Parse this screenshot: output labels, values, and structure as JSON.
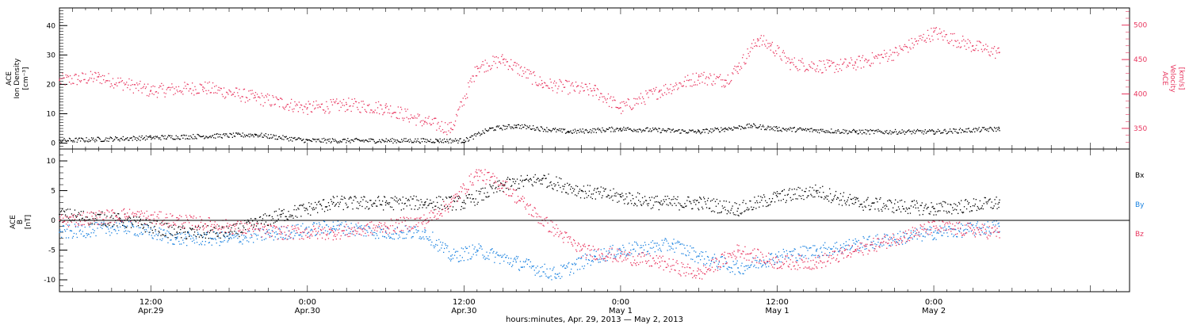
{
  "colors": {
    "black": "#000000",
    "red": "#e8365f",
    "blue": "#1a82e0"
  },
  "chart_data": {
    "type": "scatter",
    "x_time_axis": {
      "range": [
        "2013-04-29T05:00",
        "2013-05-02T15:00"
      ],
      "ticks": [
        {
          "t": "2013-04-29T12:00",
          "label": "12:00",
          "sublabel": "Apr.29"
        },
        {
          "t": "2013-04-30T00:00",
          "label": "0:00",
          "sublabel": "Apr.30"
        },
        {
          "t": "2013-04-30T12:00",
          "label": "12:00",
          "sublabel": "Apr.30"
        },
        {
          "t": "2013-05-01T00:00",
          "label": "0:00",
          "sublabel": "May 1"
        },
        {
          "t": "2013-05-01T12:00",
          "label": "12:00",
          "sublabel": "May 1"
        },
        {
          "t": "2013-05-02T00:00",
          "label": "0:00",
          "sublabel": "May 2"
        }
      ],
      "title": "hours:minutes, Apr. 29, 2013 — May  2, 2013"
    },
    "panels": [
      {
        "name": "top",
        "left_axis": {
          "label_lines": [
            "ACE",
            "Ion Density",
            "[cm⁻³]"
          ],
          "ylim": [
            -2,
            46
          ],
          "ticks": [
            0,
            10,
            20,
            30,
            40
          ]
        },
        "right_axis": {
          "label_lines": [
            "ACE",
            "Velocity",
            "[km/s]"
          ],
          "ylim": [
            320,
            525
          ],
          "ticks": [
            350,
            400,
            450,
            500
          ]
        },
        "series": [
          {
            "key": "velocity",
            "axis": "right",
            "color_key": "red",
            "x": [
              "2013-04-29T05:00",
              "2013-04-29T08:00",
              "2013-04-29T12:00",
              "2013-04-29T16:00",
              "2013-04-29T20:00",
              "2013-04-30T00:00",
              "2013-04-30T03:00",
              "2013-04-30T06:00",
              "2013-04-30T09:00",
              "2013-04-30T11:00",
              "2013-04-30T13:00",
              "2013-04-30T15:00",
              "2013-04-30T18:00",
              "2013-04-30T22:00",
              "2013-05-01T00:00",
              "2013-05-01T03:00",
              "2013-05-01T06:00",
              "2013-05-01T08:00",
              "2013-05-01T09:00",
              "2013-05-01T10:30",
              "2013-05-01T11:30",
              "2013-05-01T13:00",
              "2013-05-01T16:00",
              "2013-05-01T18:00",
              "2013-05-01T21:00",
              "2013-05-02T00:00",
              "2013-05-02T03:00",
              "2013-05-02T05:00"
            ],
            "y": [
              420,
              425,
              405,
              410,
              395,
              380,
              385,
              380,
              360,
              350,
              440,
              450,
              415,
              405,
              380,
              405,
              425,
              420,
              440,
              480,
              470,
              445,
              440,
              445,
              460,
              490,
              470,
              460
            ]
          },
          {
            "key": "density",
            "axis": "left",
            "color_key": "black",
            "x": [
              "2013-04-29T05:00",
              "2013-04-29T12:00",
              "2013-04-29T20:00",
              "2013-04-30T00:00",
              "2013-04-30T10:00",
              "2013-04-30T12:00",
              "2013-04-30T14:00",
              "2013-04-30T16:00",
              "2013-04-30T20:00",
              "2013-05-01T00:00",
              "2013-05-01T06:00",
              "2013-05-01T08:00",
              "2013-05-01T10:00",
              "2013-05-01T12:00",
              "2013-05-01T18:00",
              "2013-05-02T00:00",
              "2013-05-02T05:00"
            ],
            "y": [
              1,
              2,
              3,
              1,
              1,
              1,
              5,
              6,
              4,
              5,
              4,
              5,
              6,
              5,
              4,
              4,
              5
            ]
          }
        ]
      },
      {
        "name": "bottom",
        "left_axis": {
          "label_lines": [
            "ACE",
            "B",
            "[nT]"
          ],
          "ylim": [
            -12,
            12
          ],
          "ticks": [
            -10,
            -5,
            0,
            5,
            10
          ]
        },
        "legend_position": "right",
        "series": [
          {
            "key": "Bx",
            "name": "Bx",
            "color_key": "black",
            "x": [
              "2013-04-29T05:00",
              "2013-04-29T10:00",
              "2013-04-29T14:00",
              "2013-04-29T18:00",
              "2013-04-29T22:00",
              "2013-04-30T02:00",
              "2013-04-30T06:00",
              "2013-04-30T09:00",
              "2013-04-30T12:00",
              "2013-04-30T15:00",
              "2013-04-30T18:00",
              "2013-04-30T21:00",
              "2013-05-01T00:00",
              "2013-05-01T03:00",
              "2013-05-01T06:00",
              "2013-05-01T09:00",
              "2013-05-01T12:00",
              "2013-05-01T15:00",
              "2013-05-01T18:00",
              "2013-05-02T00:00",
              "2013-05-02T05:00"
            ],
            "y": [
              1,
              0,
              -2,
              -2,
              1,
              3,
              3,
              3,
              3,
              6,
              7,
              5,
              4,
              3,
              3,
              2,
              4,
              5,
              3,
              2,
              3
            ]
          },
          {
            "key": "By",
            "name": "By",
            "color_key": "blue",
            "x": [
              "2013-04-29T05:00",
              "2013-04-29T10:00",
              "2013-04-29T14:00",
              "2013-04-29T18:00",
              "2013-04-29T22:00",
              "2013-04-30T02:00",
              "2013-04-30T06:00",
              "2013-04-30T09:00",
              "2013-04-30T11:00",
              "2013-04-30T13:00",
              "2013-04-30T16:00",
              "2013-04-30T19:00",
              "2013-04-30T22:00",
              "2013-05-01T00:00",
              "2013-05-01T04:00",
              "2013-05-01T06:00",
              "2013-05-01T09:00",
              "2013-05-01T12:00",
              "2013-05-01T15:00",
              "2013-05-01T18:00",
              "2013-05-02T00:00",
              "2013-05-02T05:00"
            ],
            "y": [
              -2,
              -1,
              -3,
              -3,
              -2,
              -1,
              -2,
              -2,
              -6,
              -5,
              -7,
              -9,
              -6,
              -5,
              -4,
              -6,
              -8,
              -6,
              -5,
              -4,
              -2,
              -1
            ]
          },
          {
            "key": "Bz",
            "name": "Bz",
            "color_key": "red",
            "x": [
              "2013-04-29T05:00",
              "2013-04-29T10:00",
              "2013-04-29T14:00",
              "2013-04-29T18:00",
              "2013-04-29T22:00",
              "2013-04-30T02:00",
              "2013-04-30T06:00",
              "2013-04-30T09:00",
              "2013-04-30T11:00",
              "2013-04-30T13:00",
              "2013-04-30T15:00",
              "2013-04-30T18:00",
              "2013-04-30T21:00",
              "2013-05-01T00:00",
              "2013-05-01T03:00",
              "2013-05-01T06:00",
              "2013-05-01T09:00",
              "2013-05-01T12:00",
              "2013-05-01T15:00",
              "2013-05-01T18:00",
              "2013-05-02T00:00",
              "2013-05-02T05:00"
            ],
            "y": [
              0,
              1,
              0,
              -1,
              -2,
              -2,
              -1,
              0,
              3,
              8,
              6,
              0,
              -5,
              -6,
              -7,
              -9,
              -5,
              -7,
              -7,
              -5,
              -1,
              -2
            ]
          }
        ]
      }
    ]
  }
}
